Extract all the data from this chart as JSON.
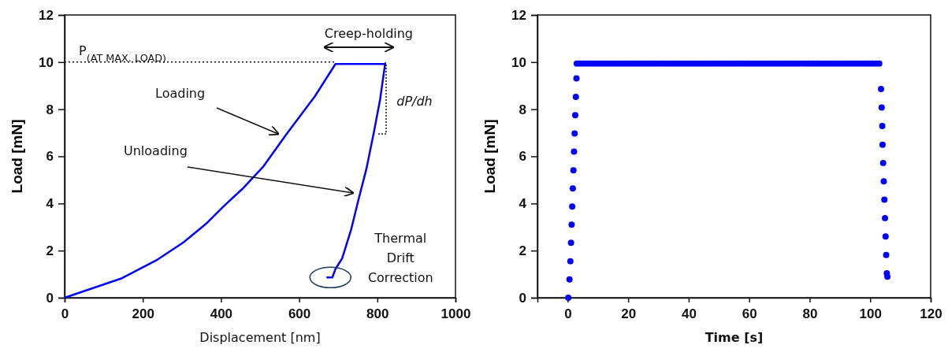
{
  "chart_data": [
    {
      "type": "line",
      "xlabel": "Displacement [nm]",
      "ylabel": "Load [mN]",
      "xlim": [
        0,
        1000
      ],
      "ylim": [
        0,
        12
      ],
      "xticks": [
        0,
        200,
        400,
        600,
        800,
        1000
      ],
      "yticks": [
        0,
        2,
        4,
        6,
        8,
        10,
        12
      ],
      "marker": "none",
      "series": [
        {
          "color": "#0000ff",
          "x": [
            0,
            144,
            234,
            304,
            362,
            408,
            455,
            509,
            567,
            640,
            693,
            820,
            807,
            791,
            772,
            752,
            733,
            710,
            693,
            685,
            670
          ],
          "values": [
            0,
            0.81,
            1.58,
            2.35,
            3.14,
            3.9,
            4.62,
            5.58,
            6.93,
            8.54,
            9.92,
            9.92,
            8.4,
            7.0,
            5.46,
            4.17,
            2.89,
            1.67,
            1.22,
            0.86,
            0.86
          ]
        }
      ],
      "ref_lines": [
        {
          "axis": "y",
          "value": 10,
          "label": "P$_{(AT MAX. LOAD)}$",
          "line_style": "dotted"
        }
      ],
      "annotations": [
        "Creep-holding",
        "Loading",
        "Unloading",
        "dP/dh",
        {
          "text": "Thermal Drift Correction",
          "x": 680,
          "y": 0.86
        }
      ]
    },
    {
      "type": "scatter",
      "xlabel": "Time [s]",
      "ylabel": "Load [mN]",
      "xlim": [
        -10,
        120
      ],
      "ylim": [
        0,
        12
      ],
      "xticks": [
        0,
        20,
        40,
        60,
        80,
        100,
        120
      ],
      "yticks": [
        0,
        2,
        4,
        6,
        8,
        10,
        12
      ],
      "marker": "circle",
      "series": [
        {
          "color": "#0000ff",
          "x": [
            0.2,
            0.6,
            0.9,
            1.1,
            1.3,
            1.5,
            1.7,
            1.9,
            2.1,
            2.3,
            2.5,
            2.7,
            2.9,
            3,
            4,
            5,
            6,
            7,
            8,
            9,
            10,
            11,
            12,
            13,
            14,
            15,
            16,
            17,
            18,
            19,
            20,
            21,
            22,
            23,
            24,
            25,
            26,
            27,
            28,
            29,
            30,
            31,
            32,
            33,
            34,
            35,
            36,
            37,
            38,
            39,
            40,
            41,
            42,
            43,
            44,
            45,
            46,
            47,
            48,
            49,
            50,
            51,
            52,
            53,
            54,
            55,
            56,
            57,
            58,
            59,
            60,
            61,
            62,
            63,
            64,
            65,
            66,
            67,
            68,
            69,
            70,
            71,
            72,
            73,
            74,
            75,
            76,
            77,
            78,
            79,
            80,
            81,
            82,
            83,
            84,
            85,
            86,
            87,
            88,
            89,
            90,
            91,
            92,
            93,
            94,
            95,
            96,
            97,
            98,
            99,
            100,
            101,
            102,
            103,
            103.6,
            103.8,
            104.0,
            104.1,
            104.3,
            104.5,
            104.7,
            104.9,
            105.1,
            105.3,
            105.5,
            105.7
          ],
          "values": [
            0,
            0.78,
            1.55,
            2.33,
            3.1,
            3.87,
            4.64,
            5.41,
            6.2,
            6.97,
            7.75,
            8.52,
            9.31,
            9.94,
            9.94,
            9.94,
            9.94,
            9.94,
            9.94,
            9.94,
            9.94,
            9.94,
            9.94,
            9.94,
            9.94,
            9.94,
            9.94,
            9.94,
            9.94,
            9.94,
            9.94,
            9.94,
            9.94,
            9.94,
            9.94,
            9.94,
            9.94,
            9.94,
            9.94,
            9.94,
            9.94,
            9.94,
            9.94,
            9.94,
            9.94,
            9.94,
            9.94,
            9.94,
            9.94,
            9.94,
            9.94,
            9.94,
            9.94,
            9.94,
            9.94,
            9.94,
            9.94,
            9.94,
            9.94,
            9.94,
            9.94,
            9.94,
            9.94,
            9.94,
            9.94,
            9.94,
            9.94,
            9.94,
            9.94,
            9.94,
            9.94,
            9.94,
            9.94,
            9.94,
            9.94,
            9.94,
            9.94,
            9.94,
            9.94,
            9.94,
            9.94,
            9.94,
            9.94,
            9.94,
            9.94,
            9.94,
            9.94,
            9.94,
            9.94,
            9.94,
            9.94,
            9.94,
            9.94,
            9.94,
            9.94,
            9.94,
            9.94,
            9.94,
            9.94,
            9.94,
            9.94,
            9.94,
            9.94,
            9.94,
            9.94,
            9.94,
            9.94,
            9.94,
            9.94,
            9.94,
            9.94,
            9.94,
            9.94,
            9.94,
            8.86,
            8.07,
            7.29,
            6.49,
            5.72,
            4.94,
            4.16,
            3.38,
            2.6,
            1.81,
            1.04,
            0.89
          ]
        }
      ]
    }
  ]
}
